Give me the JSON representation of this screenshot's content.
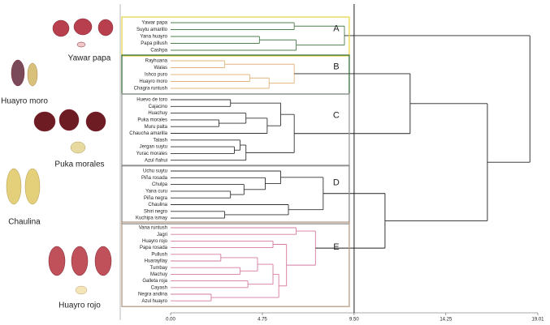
{
  "chart_data": {
    "type": "dendrogram",
    "xlim": [
      0,
      19.01
    ],
    "xticks": [
      {
        "value": 0,
        "label": "0.00"
      },
      {
        "value": 4.75,
        "label": "4.75"
      },
      {
        "value": 9.5,
        "label": "9.50"
      },
      {
        "value": 14.25,
        "label": "14.25"
      },
      {
        "value": 19.01,
        "label": "19.01"
      }
    ],
    "photos": [
      "Yawar papa",
      "Huayro moro",
      "Puka morales",
      "Chaulina",
      "Huayro rojo"
    ],
    "tree": {
      "h": 18.6,
      "c": [
        {
          "label": "A",
          "color": "#e6d64a",
          "line_color": "#4f7f4f",
          "h": 9.0,
          "c": [
            {
              "h": 6.4,
              "c": [
                "Yawar papa",
                "Suytu amarillo"
              ]
            },
            {
              "h": 6.5,
              "c": [
                {
                  "h": 4.6,
                  "c": [
                    "Yana huayro",
                    "Papa pillush"
                  ]
                },
                "Cashpa"
              ]
            }
          ]
        },
        {
          "h": 16.4,
          "c": [
            {
              "h": 12.4,
              "c": [
                {
                  "label": "B",
                  "color": "#3a6e3a",
                  "line_color": "#e3b47e",
                  "h": 6.4,
                  "c": [
                    {
                      "h": 2.8,
                      "c": [
                        "Rayhuana",
                        "Walas"
                      ]
                    },
                    {
                      "h": 5.1,
                      "c": [
                        {
                          "h": 4.1,
                          "c": [
                            "Ishco puro",
                            "Huayro moro"
                          ]
                        },
                        "Chagra runtush"
                      ]
                    }
                  ]
                },
                {
                  "label": "C",
                  "color": "#9a9a9a",
                  "line_color": "#333333",
                  "h": 6.4,
                  "c": [
                    {
                      "h": 5.7,
                      "c": [
                        {
                          "h": 3.1,
                          "c": [
                            "Huevo de toro",
                            "Cajacino"
                          ]
                        },
                        {
                          "h": 5.0,
                          "c": [
                            {
                              "h": 3.9,
                              "c": [
                                "Huachuy",
                                {
                                  "h": 2.5,
                                  "c": [
                                    "Puka morales",
                                    "Muru palta"
                                  ]
                                }
                              ]
                            },
                            "Chaucha amarilla"
                          ]
                        }
                      ]
                    },
                    {
                      "h": 3.9,
                      "c": [
                        {
                          "h": 3.6,
                          "c": [
                            "Tatash",
                            {
                              "h": 3.3,
                              "c": [
                                "Jergan suytu",
                                "Yurac morales"
                              ]
                            }
                          ]
                        },
                        "Azul ñahui"
                      ]
                    }
                  ]
                }
              ]
            },
            {
              "h": 11.1,
              "c": [
                {
                  "label": "D",
                  "color": "#8a8a8a",
                  "line_color": "#333333",
                  "h": 7.9,
                  "c": [
                    {
                      "h": 5.7,
                      "c": [
                        "Uchu suytu",
                        {
                          "h": 4.9,
                          "c": [
                            "Piña rosada",
                            {
                              "h": 3.8,
                              "c": [
                                "Chulpa",
                                {
                                  "h": 3.1,
                                  "c": [
                                    "Yana curu",
                                    "Piña negra"
                                  ]
                                }
                              ]
                            }
                          ]
                        }
                      ]
                    },
                    {
                      "h": 6.1,
                      "c": [
                        "Chaulina",
                        {
                          "h": 2.8,
                          "c": [
                            "Shiri negro",
                            "Kuchipa ismay"
                          ]
                        }
                      ]
                    }
                  ]
                },
                {
                  "label": "E",
                  "color": "#b89c82",
                  "line_color": "#d57aa0",
                  "h": 7.5,
                  "c": [
                    {
                      "h": 6.5,
                      "c": [
                        "Vana runtush",
                        "Jagri"
                      ]
                    },
                    {
                      "h": 6.0,
                      "c": [
                        {
                          "h": 5.3,
                          "c": [
                            "Huayro rojo",
                            "Papa rosada"
                          ]
                        },
                        {
                          "h": 5.6,
                          "c": [
                            {
                              "h": 5.3,
                              "c": [
                                {
                                  "h": 4.5,
                                  "c": [
                                    {
                                      "h": 2.6,
                                      "c": [
                                        "Pullush",
                                        "Huarayllay"
                                      ]
                                    },
                                    {
                                      "h": 3.6,
                                      "c": [
                                        "Tumbay",
                                        "Machuy"
                                      ]
                                    }
                                  ]
                                },
                                {
                                  "h": 4.0,
                                  "c": [
                                    "Galleta roja",
                                    "Cayash"
                                  ]
                                }
                              ]
                            },
                            {
                              "h": 2.1,
                              "c": [
                                "Negra andina",
                                "Azul huayro"
                              ]
                            }
                          ]
                        }
                      ]
                    }
                  ]
                }
              ]
            }
          ]
        }
      ]
    }
  }
}
